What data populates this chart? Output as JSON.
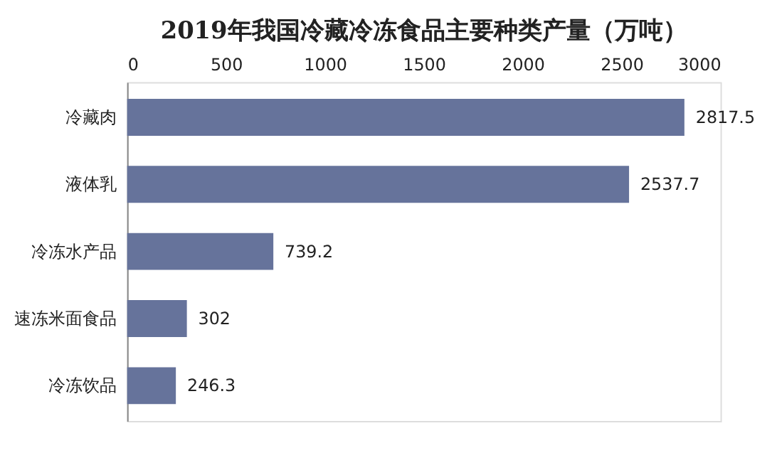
{
  "chart_data": {
    "type": "bar",
    "orientation": "horizontal",
    "title": "2019年我国冷藏冷冻食品主要种类产量（万吨）",
    "categories": [
      "冷藏肉",
      "液体乳",
      "冷冻水产品",
      "速冻米面食品",
      "冷冻饮品"
    ],
    "values": [
      2817.5,
      2537.7,
      739.2,
      302,
      246.3
    ],
    "color": "#66739b",
    "xlim": [
      0,
      3000
    ],
    "xticks": [
      0,
      500,
      1000,
      1500,
      2000,
      2500,
      3000
    ],
    "grid": false,
    "data_labels": true
  }
}
